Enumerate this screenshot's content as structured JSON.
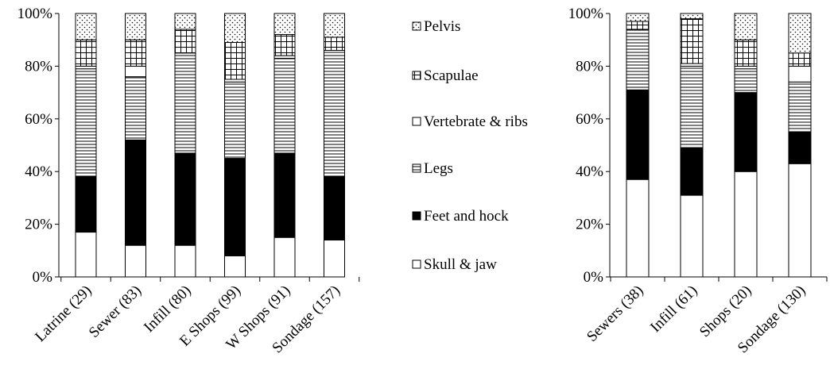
{
  "legend": {
    "items": [
      {
        "label": "Pelvis",
        "pattern": "dots"
      },
      {
        "label": "Scapulae",
        "pattern": "grid"
      },
      {
        "label": "Vertebrate & ribs",
        "pattern": "white"
      },
      {
        "label": "Legs",
        "pattern": "hlines"
      },
      {
        "label": "Feet and hock",
        "pattern": "black"
      },
      {
        "label": "Skull & jaw",
        "pattern": "white"
      }
    ]
  },
  "chart_data": [
    {
      "type": "bar",
      "stacked": true,
      "percent": true,
      "categories": [
        "Latrine (29)",
        "Sewer (83)",
        "Infill (80)",
        "E Shops (99)",
        "W Shops (91)",
        "Sondage (157)"
      ],
      "ylim": [
        0,
        100
      ],
      "yticks": [
        "0%",
        "20%",
        "40%",
        "60%",
        "80%",
        "100%"
      ],
      "series": [
        {
          "name": "Skull & jaw",
          "values": [
            17,
            12,
            12,
            8,
            15,
            14
          ]
        },
        {
          "name": "Feet and hock",
          "values": [
            21,
            40,
            35,
            37,
            32,
            24
          ]
        },
        {
          "name": "Legs",
          "values": [
            41,
            24,
            38,
            29,
            36,
            48
          ]
        },
        {
          "name": "Vertebrate & ribs",
          "values": [
            1,
            4,
            0,
            1,
            1,
            0
          ]
        },
        {
          "name": "Scapulae",
          "values": [
            10,
            10,
            9,
            14,
            8,
            5
          ]
        },
        {
          "name": "Pelvis",
          "values": [
            10,
            10,
            6,
            11,
            8,
            9
          ]
        }
      ]
    },
    {
      "type": "bar",
      "stacked": true,
      "percent": true,
      "categories": [
        "Sewers (38)",
        "Infill (61)",
        "Shops (20)",
        "Sondage (130)"
      ],
      "ylim": [
        0,
        100
      ],
      "yticks": [
        "0%",
        "20%",
        "40%",
        "60%",
        "80%",
        "100%"
      ],
      "series": [
        {
          "name": "Skull & jaw",
          "values": [
            37,
            31,
            40,
            43
          ]
        },
        {
          "name": "Feet and hock",
          "values": [
            34,
            18,
            30,
            12
          ]
        },
        {
          "name": "Legs",
          "values": [
            23,
            31,
            9,
            19
          ]
        },
        {
          "name": "Vertebrate & ribs",
          "values": [
            0,
            1,
            1,
            6
          ]
        },
        {
          "name": "Scapulae",
          "values": [
            3,
            17,
            10,
            5
          ]
        },
        {
          "name": "Pelvis",
          "values": [
            3,
            2,
            10,
            15
          ]
        }
      ]
    }
  ]
}
